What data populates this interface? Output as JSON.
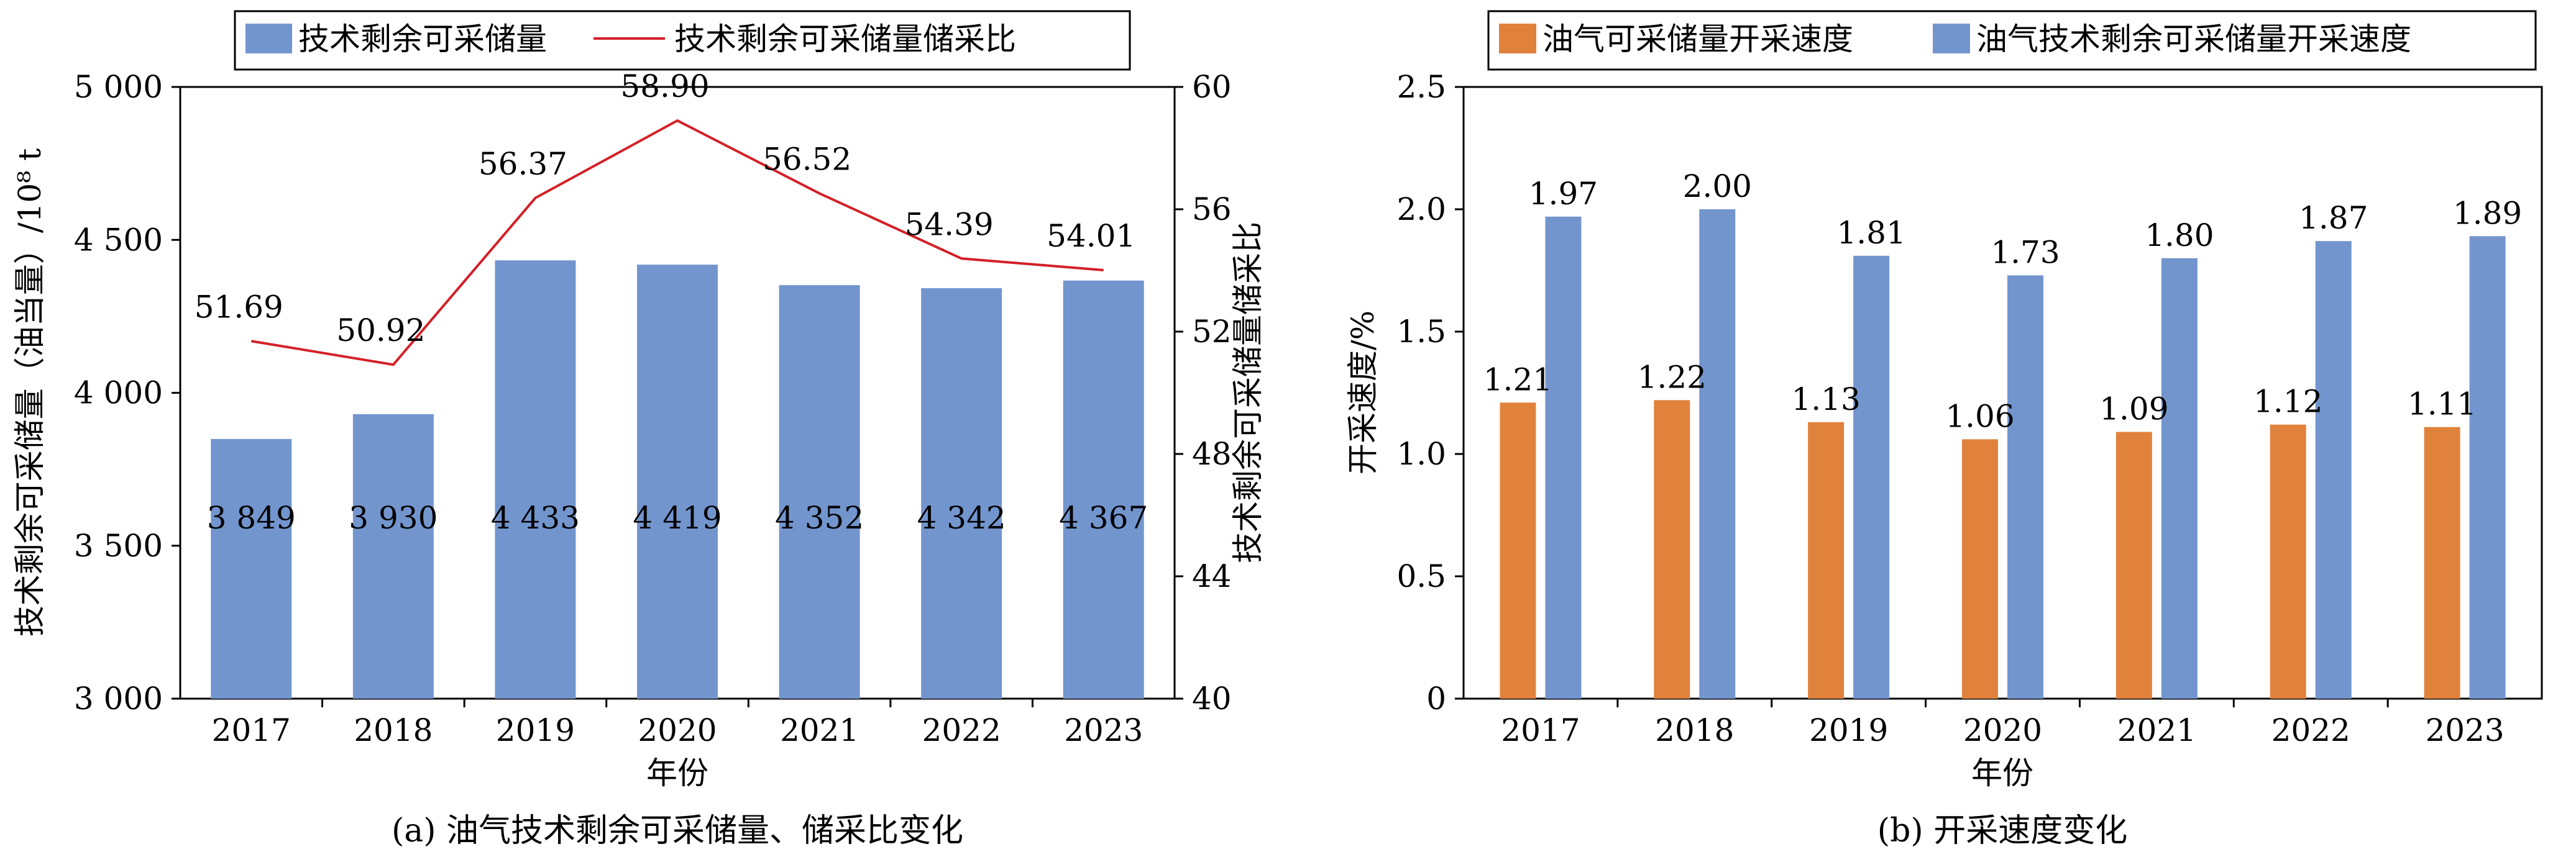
{
  "chart_data": [
    {
      "type": "bar",
      "panel_caption": "(a) 油气技术剩余可采储量、储采比变化",
      "xlabel": "年份",
      "ylabel": "技术剩余可采储量（油当量）/10⁸ t",
      "y2label": "技术剩余可采储量储采比",
      "categories": [
        "2017",
        "2018",
        "2019",
        "2020",
        "2021",
        "2022",
        "2023"
      ],
      "ylim": [
        3000,
        5000
      ],
      "yticks": [
        "3 000",
        "3 500",
        "4 000",
        "4 500",
        "5 000"
      ],
      "y2lim": [
        40,
        60
      ],
      "y2ticks": [
        "40",
        "44",
        "48",
        "52",
        "56",
        "60"
      ],
      "legend_position": "top",
      "series": [
        {
          "name": "技术剩余可采储量",
          "kind": "bar",
          "axis": "left",
          "color": "#7395CE",
          "values": [
            3849,
            3930,
            4433,
            4419,
            4352,
            4342,
            4367
          ],
          "labels": [
            "3 849",
            "3 930",
            "4 433",
            "4 419",
            "4 352",
            "4 342",
            "4 367"
          ]
        },
        {
          "name": "技术剩余可采储量储采比",
          "kind": "line",
          "axis": "right",
          "color": "#D42027",
          "values": [
            51.69,
            50.92,
            56.37,
            58.9,
            56.52,
            54.39,
            54.01
          ],
          "labels": [
            "51.69",
            "50.92",
            "56.37",
            "58.90",
            "56.52",
            "54.39",
            "54.01"
          ]
        }
      ]
    },
    {
      "type": "bar",
      "panel_caption": "(b) 开采速度变化",
      "xlabel": "年份",
      "ylabel": "开采速度/%",
      "categories": [
        "2017",
        "2018",
        "2019",
        "2020",
        "2021",
        "2022",
        "2023"
      ],
      "ylim": [
        0,
        2.5
      ],
      "yticks": [
        "0",
        "0.5",
        "1.0",
        "1.5",
        "2.0",
        "2.5"
      ],
      "legend_position": "top",
      "series": [
        {
          "name": "油气可采储量开采速度",
          "color": "#E1823C",
          "values": [
            1.21,
            1.22,
            1.13,
            1.06,
            1.09,
            1.12,
            1.11
          ],
          "labels": [
            "1.21",
            "1.22",
            "1.13",
            "1.06",
            "1.09",
            "1.12",
            "1.11"
          ]
        },
        {
          "name": "油气技术剩余可采储量开采速度",
          "color": "#7395CE",
          "values": [
            1.97,
            2.0,
            1.81,
            1.73,
            1.8,
            1.87,
            1.89
          ],
          "labels": [
            "1.97",
            "2.00",
            "1.81",
            "1.73",
            "1.80",
            "1.87",
            "1.89"
          ]
        }
      ]
    }
  ]
}
